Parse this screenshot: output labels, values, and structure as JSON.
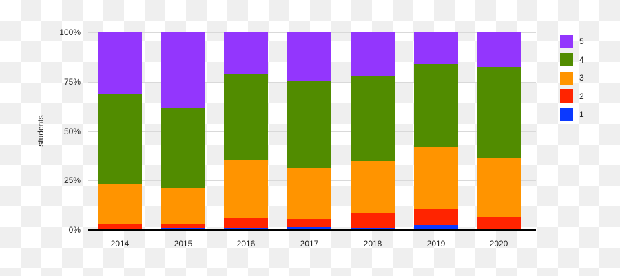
{
  "chart_data": {
    "type": "bar",
    "stacked": true,
    "normalized": true,
    "title": "",
    "xlabel": "",
    "ylabel": "students",
    "ylim": [
      0,
      100
    ],
    "yticks": [
      "0%",
      "25%",
      "50%",
      "75%",
      "100%"
    ],
    "categories": [
      "2014",
      "2015",
      "2016",
      "2017",
      "2018",
      "2019",
      "2020"
    ],
    "series": [
      {
        "name": "1",
        "color": "#0b39ff",
        "values": [
          0.8,
          1.0,
          1.1,
          1.4,
          1.0,
          2.4,
          0.0
        ]
      },
      {
        "name": "2",
        "color": "#ff2400",
        "values": [
          2.1,
          1.9,
          4.7,
          4.1,
          7.5,
          8.1,
          6.7
        ]
      },
      {
        "name": "3",
        "color": "#ff9400",
        "values": [
          20.4,
          18.4,
          29.5,
          25.9,
          26.2,
          31.7,
          29.8
        ]
      },
      {
        "name": "4",
        "color": "#518c00",
        "values": [
          45.4,
          40.4,
          43.4,
          44.1,
          43.5,
          41.7,
          45.6
        ]
      },
      {
        "name": "5",
        "color": "#9336fd",
        "values": [
          31.3,
          38.3,
          21.3,
          24.5,
          21.8,
          16.1,
          17.9
        ]
      }
    ],
    "grid": true,
    "legend_position": "right",
    "legend_order": [
      "5",
      "4",
      "3",
      "2",
      "1"
    ]
  }
}
